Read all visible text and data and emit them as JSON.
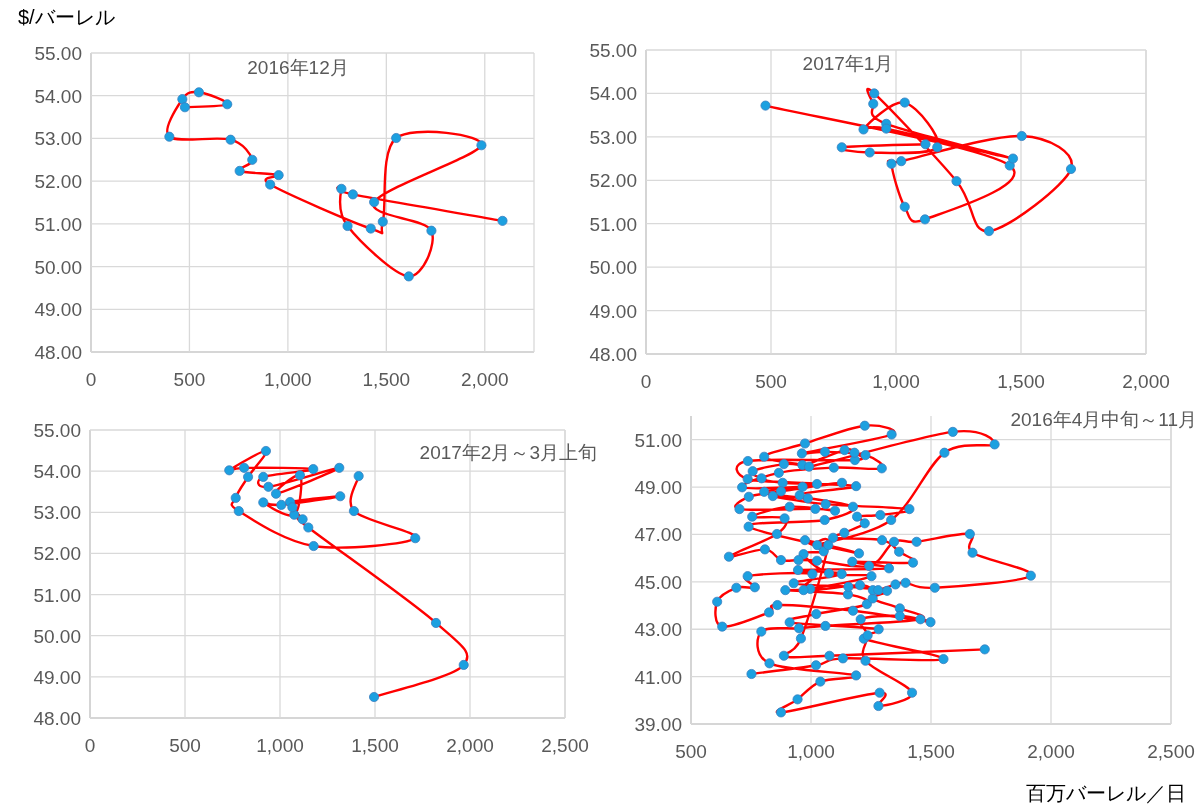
{
  "chart_data": [
    {
      "type": "line",
      "title": "2016年12月",
      "ylabel": "$/バーレル",
      "marker": "circle",
      "grid": true,
      "xlim": [
        0,
        2250
      ],
      "xticks": [
        {
          "value": 0,
          "label": "0"
        },
        {
          "value": 500,
          "label": "500"
        },
        {
          "value": 1000,
          "label": "1,000"
        },
        {
          "value": 1500,
          "label": "1,500"
        },
        {
          "value": 2000,
          "label": "2,000"
        }
      ],
      "ylim": [
        48,
        55
      ],
      "yticks": [
        {
          "value": 48,
          "label": "48.00"
        },
        {
          "value": 49,
          "label": "49.00"
        },
        {
          "value": 50,
          "label": "50.00"
        },
        {
          "value": 51,
          "label": "51.00"
        },
        {
          "value": 52,
          "label": "52.00"
        },
        {
          "value": 53,
          "label": "53.00"
        },
        {
          "value": 54,
          "label": "54.00"
        },
        {
          "value": 55,
          "label": "55.00"
        }
      ],
      "series": [
        {
          "color": "#ff0000",
          "colors": [
            "#1ca0e0",
            "#1ca0e0",
            "#1ca0e0",
            "#1ca0e0",
            "#1ca0e0",
            "#1ca0e0",
            "#1ca0e0",
            "#1ca0e0",
            "#1ca0e0",
            "#1ca0e0",
            "#1ca0e0",
            "#1ca0e0",
            "#1ca0e0",
            "#1ca0e0",
            "#1ca0e0",
            "#1ca0e0",
            "#1ca0e0",
            "#1ca0e0",
            "#1ca0e0",
            "#1ca0e0",
            "#1ca0e0"
          ],
          "x": [
            2090,
            1330,
            1272,
            1303,
            1614,
            1729,
            1438,
            1983,
            1550,
            1482,
            1421,
            910,
            953,
            755,
            819,
            709,
            398,
            464,
            548,
            692,
            477
          ],
          "values": [
            51.07,
            51.69,
            51.82,
            50.95,
            49.77,
            50.84,
            51.51,
            52.84,
            53.01,
            51.05,
            50.89,
            51.92,
            52.14,
            52.24,
            52.5,
            52.97,
            53.04,
            53.92,
            54.08,
            53.8,
            53.73
          ]
        }
      ]
    },
    {
      "type": "line",
      "title": "2017年1月",
      "marker": "circle",
      "grid": true,
      "xlim": [
        0,
        2000
      ],
      "xticks": [
        {
          "value": 0,
          "label": "0"
        },
        {
          "value": 500,
          "label": "500"
        },
        {
          "value": 1000,
          "label": "1,000"
        },
        {
          "value": 1500,
          "label": "1,500"
        },
        {
          "value": 2000,
          "label": "2,000"
        }
      ],
      "ylim": [
        48,
        55
      ],
      "yticks": [
        {
          "value": 48,
          "label": "48.00"
        },
        {
          "value": 49,
          "label": "49.00"
        },
        {
          "value": 50,
          "label": "50.00"
        },
        {
          "value": 51,
          "label": "51.00"
        },
        {
          "value": 52,
          "label": "52.00"
        },
        {
          "value": 53,
          "label": "53.00"
        },
        {
          "value": 54,
          "label": "54.00"
        },
        {
          "value": 55,
          "label": "55.00"
        }
      ],
      "series": [
        {
          "color": "#ff0000",
          "colors": [
            "#1ca0e0",
            "#1ca0e0",
            "#1ca0e0",
            "#1ca0e0",
            "#1ca0e0",
            "#1ca0e0",
            "#1ca0e0",
            "#1ca0e0",
            "#1ca0e0",
            "#1ca0e0",
            "#1ca0e0",
            "#1ca0e0",
            "#1ca0e0",
            "#1ca0e0",
            "#1ca0e0",
            "#1ca0e0",
            "#1ca0e0",
            "#1ca0e0",
            "#1ca0e0",
            "#1ca0e0",
            "#1ca0e0"
          ],
          "x": [
            478,
            1455,
            1116,
            1035,
            982,
            1021,
            1503,
            1700,
            1372,
            1242,
            913,
            909,
            961,
            1468,
            961,
            870,
            1035,
            1165,
            895,
            783,
            1118
          ],
          "values": [
            53.72,
            52.34,
            51.1,
            51.39,
            52.38,
            52.44,
            53.02,
            52.26,
            50.83,
            51.98,
            54.0,
            53.76,
            53.3,
            52.5,
            53.19,
            53.17,
            53.79,
            52.76,
            52.64,
            52.76,
            52.83
          ]
        }
      ]
    },
    {
      "type": "line",
      "title": "2017年2月～3月上旬",
      "marker": "circle",
      "grid": true,
      "xlim": [
        0,
        2500
      ],
      "xticks": [
        {
          "value": 0,
          "label": "0"
        },
        {
          "value": 500,
          "label": "500"
        },
        {
          "value": 1000,
          "label": "1,000"
        },
        {
          "value": 1500,
          "label": "1,500"
        },
        {
          "value": 2000,
          "label": "2,000"
        },
        {
          "value": 2500,
          "label": "2,500"
        }
      ],
      "ylim": [
        48,
        55
      ],
      "yticks": [
        {
          "value": 48,
          "label": "48.00"
        },
        {
          "value": 49,
          "label": "49.00"
        },
        {
          "value": 50,
          "label": "50.00"
        },
        {
          "value": 51,
          "label": "51.00"
        },
        {
          "value": 52,
          "label": "52.00"
        },
        {
          "value": 53,
          "label": "53.00"
        },
        {
          "value": 54,
          "label": "54.00"
        },
        {
          "value": 55,
          "label": "55.00"
        }
      ],
      "series": [
        {
          "color": "#ff0000",
          "colors": [
            "#1ca0e0",
            "#1ca0e0",
            "#1ca0e0",
            "#1ca0e0",
            "#1ca0e0",
            "#1ca0e0",
            "#1ca0e0",
            "#1ca0e0",
            "#1ca0e0",
            "#1ca0e0",
            "#1ca0e0",
            "#1ca0e0",
            "#1ca0e0",
            "#1ca0e0",
            "#1ca0e0",
            "#1ca0e0",
            "#1ca0e0",
            "#1ca0e0",
            "#1ca0e0",
            "#1ca0e0",
            "#1ca0e0",
            "#1ca0e0",
            "#1ca0e0",
            "#1ca0e0",
            "#1ca0e0",
            "#1ca0e0",
            "#1ca0e0"
          ],
          "x": [
            1414,
            1389,
            1712,
            1177,
            783,
            767,
            832,
            926,
            733,
            811,
            1175,
            912,
            939,
            1312,
            979,
            1105,
            1075,
            912,
            1007,
            1317,
            1053,
            1065,
            1119,
            1149,
            1821,
            1967,
            1495
          ],
          "values": [
            53.88,
            53.03,
            52.37,
            52.18,
            53.03,
            53.35,
            53.86,
            54.49,
            54.02,
            54.08,
            54.05,
            53.86,
            53.62,
            54.08,
            53.45,
            53.9,
            52.94,
            53.24,
            53.18,
            53.39,
            53.25,
            53.12,
            52.83,
            52.63,
            50.31,
            49.29,
            48.51
          ]
        }
      ]
    },
    {
      "type": "line",
      "title": "2016年4月中旬～11月",
      "xlabel": "百万バーレル／日",
      "marker": "circle",
      "grid": true,
      "xlim": [
        500,
        2500
      ],
      "xticks": [
        {
          "value": 500,
          "label": "500"
        },
        {
          "value": 1000,
          "label": "1,000"
        },
        {
          "value": 1500,
          "label": "1,500"
        },
        {
          "value": 2000,
          "label": "2,000"
        },
        {
          "value": 2500,
          "label": "2,500"
        }
      ],
      "ylim": [
        39,
        52
      ],
      "yticks": [
        {
          "value": 39,
          "label": "39.00"
        },
        {
          "value": 41,
          "label": "41.00"
        },
        {
          "value": 43,
          "label": "43.00"
        },
        {
          "value": 45,
          "label": "45.00"
        },
        {
          "value": 47,
          "label": "47.00"
        },
        {
          "value": 49,
          "label": "49.00"
        },
        {
          "value": 51,
          "label": "51.00"
        }
      ],
      "series": [
        {
          "color": "#ff0000",
          "colors": [
            "#1ca0e0",
            "#1ca0e0",
            "#1ca0e0",
            "#1ca0e0",
            "#1ca0e0",
            "#1ca0e0",
            "#1ca0e0",
            "#1ca0e0",
            "#1ca0e0",
            "#1ca0e0",
            "#1ca0e0",
            "#1ca0e0",
            "#1ca0e0",
            "#1ca0e0",
            "#1ca0e0",
            "#1ca0e0",
            "#1ca0e0",
            "#1ca0e0",
            "#1ca0e0",
            "#1ca0e0",
            "#1ca0e0",
            "#1ca0e0",
            "#1ca0e0",
            "#1ca0e0",
            "#1ca0e0",
            "#1ca0e0",
            "#1ca0e0",
            "#1ca0e0",
            "#1ca0e0",
            "#1ca0e0",
            "#1ca0e0",
            "#1ca0e0",
            "#1ca0e0",
            "#1ca0e0",
            "#1ca0e0",
            "#1ca0e0",
            "#1ca0e0",
            "#1ca0e0",
            "#1ca0e0",
            "#1ca0e0",
            "#1ca0e0",
            "#1ca0e0",
            "#1ca0e0",
            "#1ca0e0",
            "#1ca0e0",
            "#1ca0e0",
            "#1ca0e0",
            "#1ca0e0",
            "#1ca0e0",
            "#1ca0e0",
            "#1ca0e0",
            "#1ca0e0",
            "#1ca0e0",
            "#1ca0e0",
            "#1ca0e0",
            "#1ca0e0",
            "#1ca0e0",
            "#1ca0e0",
            "#1ca0e0",
            "#1ca0e0",
            "#1ca0e0",
            "#1ca0e0",
            "#1ca0e0",
            "#1ca0e0",
            "#1ca0e0",
            "#1ca0e0",
            "#1ca0e0",
            "#1ca0e0",
            "#1ca0e0",
            "#1ca0e0",
            "#1ca0e0",
            "#1ca0e0",
            "#1ca0e0",
            "#1ca0e0",
            "#1ca0e0",
            "#1ca0e0",
            "#1ca0e0",
            "#1ca0e0",
            "#1ca0e0",
            "#1ca0e0",
            "#1ca0e0",
            "#1ca0e0",
            "#1ca0e0",
            "#1ca0e0",
            "#1ca0e0",
            "#1ca0e0",
            "#1ca0e0",
            "#1ca0e0",
            "#1ca0e0",
            "#1ca0e0",
            "#1ca0e0",
            "#1ca0e0",
            "#1ca0e0",
            "#1ca0e0",
            "#1ca0e0",
            "#1ca0e0",
            "#1ca0e0",
            "#1ca0e0",
            "#1ca0e0",
            "#1ca0e0",
            "#1ca0e0",
            "#1ca0e0",
            "#1ca0e0",
            "#1ca0e0",
            "#1ca0e0",
            "#1ca0e0",
            "#1ca0e0",
            "#1ca0e0",
            "#1ca0e0",
            "#1ca0e0",
            "#1ca0e0",
            "#1ca0e0",
            "#1ca0e0",
            "#1ca0e0",
            "#1ca0e0",
            "#1ca0e0",
            "#1ca0e0",
            "#1ca0e0",
            "#1ca0e0",
            "#1ca0e0",
            "#1ca0e0",
            "#1ca0e0",
            "#1ca0e0",
            "#1ca0e0",
            "#1ca0e0",
            "#1ca0e0",
            "#1ca0e0",
            "#1ca0e0",
            "#1ca0e0",
            "#1ca0e0",
            "#1ca0e0",
            "#1ca0e0",
            "#1ca0e0"
          ],
          "x": [
            752,
            1021,
            1133,
            1552,
            1220,
            1282,
            911,
            1022,
            1233,
            1154,
            893,
            997,
            1252,
            1075,
            969,
            1053,
            975,
            1200,
            740,
            1057,
            1175,
            953,
            1188,
            882,
            794,
            757,
            887,
            964,
            805,
            975,
            1224,
            1336,
            962,
            1058,
            1227,
            1295,
            1095,
            866,
            713,
            965,
            1129,
            805,
            987,
            841,
            1061,
            1410,
            1289,
            1192,
            1224,
            1139,
            1092,
            1296,
            1367,
            1425,
            1172,
            1325,
            946,
            1128,
            928,
            1156,
            1317,
            1257,
            1370,
            1456,
            1060,
            950,
            793,
            827,
            1188,
            1039,
            944,
            875,
            1286,
            1281,
            1421,
            1227,
            1236,
            1207,
            1370,
            1498,
            1175,
            860,
            825,
            630,
            609,
            689,
            766,
            736,
            1006,
            969,
            1204,
            1258,
            1280,
            1352,
            1394,
            1516,
            1916,
            1673,
            1662,
            1440,
            1346,
            1242,
            1025,
            948,
            875,
            808,
            658,
            858,
            890,
            755,
            911,
            1100,
            1018,
            702,
            741,
            875,
            1025,
            736,
            737,
            1183,
            1181,
            1140,
            992,
            1591,
            1765,
            1556,
            1334,
            1026,
            1072,
            958,
            887,
            1077,
            1724
          ],
          "values": [
            41.11,
            41.48,
            41.77,
            41.74,
            42.6,
            43.0,
            43.29,
            43.64,
            44.06,
            44.47,
            44.65,
            44.7,
            45.24,
            45.36,
            46.17,
            46.29,
            46.76,
            46.2,
            47.33,
            47.61,
            48.17,
            48.66,
            49.04,
            49.18,
            49.37,
            49.67,
            49.97,
            49.93,
            50.28,
            50.84,
            51.59,
            51.22,
            50.42,
            50.49,
            50.35,
            49.79,
            49.82,
            49.6,
            48.99,
            49.01,
            49.18,
            48.8,
            48.52,
            48.62,
            48.28,
            48.07,
            47.82,
            47.75,
            47.47,
            47.07,
            46.86,
            46.76,
            46.27,
            45.81,
            45.85,
            45.57,
            45.5,
            45.33,
            44.94,
            44.79,
            44.62,
            44.3,
            43.88,
            43.42,
            43.14,
            43.04,
            42.9,
            41.56,
            41.05,
            40.79,
            40.04,
            39.49,
            40.32,
            39.76,
            40.32,
            41.67,
            42.74,
            43.42,
            43.56,
            43.3,
            43.78,
            44.02,
            43.71,
            43.11,
            44.16,
            44.75,
            44.77,
            45.24,
            45.33,
            44.65,
            44.86,
            44.65,
            44.65,
            44.89,
            44.96,
            44.75,
            45.26,
            46.23,
            47.02,
            46.69,
            46.69,
            45.67,
            45.89,
            45.92,
            45.92,
            46.37,
            46.06,
            47.02,
            47.68,
            47.75,
            48.17,
            48.0,
            48.08,
            48.07,
            48.59,
            48.82,
            49.13,
            49.34,
            50.1,
            50.14,
            50.45,
            50.56,
            49.86,
            51.33,
            50.8,
            50.45,
            47.61,
            46.55,
            46.55,
            42.61,
            41.88,
            41.88,
            42.15
          ]
        }
      ]
    }
  ]
}
